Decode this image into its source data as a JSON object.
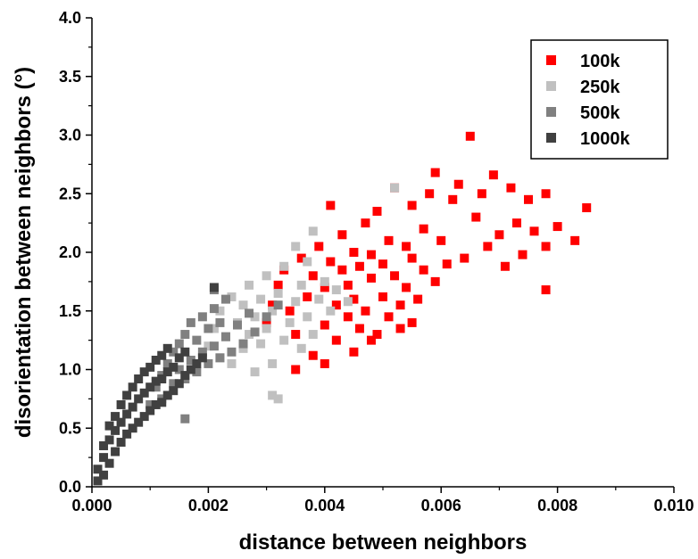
{
  "chart_data": {
    "type": "scatter",
    "title": "",
    "xlabel": "distance between neighbors",
    "ylabel": "disorientation between neighbors (°)",
    "xlim": [
      0.0,
      0.01
    ],
    "ylim": [
      0.0,
      4.0
    ],
    "x_ticks": [
      "0.000",
      "0.002",
      "0.004",
      "0.006",
      "0.008",
      "0.010"
    ],
    "y_ticks": [
      "0.0",
      "0.5",
      "1.0",
      "1.5",
      "2.0",
      "2.5",
      "3.0",
      "3.5",
      "4.0"
    ],
    "grid": false,
    "legend_position": "top-right",
    "marker": "square",
    "series": [
      {
        "name": "100k",
        "color": "#ff0000",
        "points": [
          [
            0.003,
            1.4
          ],
          [
            0.0031,
            1.55
          ],
          [
            0.0032,
            1.72
          ],
          [
            0.0033,
            1.85
          ],
          [
            0.0034,
            1.5
          ],
          [
            0.0035,
            1.3
          ],
          [
            0.0036,
            1.95
          ],
          [
            0.0037,
            1.62
          ],
          [
            0.0038,
            1.12
          ],
          [
            0.0038,
            1.8
          ],
          [
            0.0039,
            2.05
          ],
          [
            0.004,
            1.38
          ],
          [
            0.004,
            1.7
          ],
          [
            0.0041,
            1.92
          ],
          [
            0.0041,
            2.4
          ],
          [
            0.0042,
            1.25
          ],
          [
            0.0042,
            1.55
          ],
          [
            0.0043,
            2.15
          ],
          [
            0.0043,
            1.85
          ],
          [
            0.0044,
            1.45
          ],
          [
            0.0044,
            1.72
          ],
          [
            0.0045,
            1.6
          ],
          [
            0.0045,
            2.0
          ],
          [
            0.0046,
            1.35
          ],
          [
            0.0046,
            1.88
          ],
          [
            0.0047,
            2.25
          ],
          [
            0.0047,
            1.5
          ],
          [
            0.0048,
            1.78
          ],
          [
            0.0048,
            1.98
          ],
          [
            0.0049,
            1.3
          ],
          [
            0.0049,
            2.35
          ],
          [
            0.005,
            1.62
          ],
          [
            0.005,
            1.9
          ],
          [
            0.0051,
            2.1
          ],
          [
            0.0051,
            1.45
          ],
          [
            0.0052,
            1.8
          ],
          [
            0.0052,
            2.55
          ],
          [
            0.0053,
            1.55
          ],
          [
            0.0054,
            2.05
          ],
          [
            0.0054,
            1.7
          ],
          [
            0.0055,
            1.95
          ],
          [
            0.0055,
            2.4
          ],
          [
            0.0056,
            1.6
          ],
          [
            0.0057,
            2.2
          ],
          [
            0.0057,
            1.85
          ],
          [
            0.0058,
            2.5
          ],
          [
            0.0059,
            1.75
          ],
          [
            0.0059,
            2.68
          ],
          [
            0.006,
            2.1
          ],
          [
            0.0061,
            1.9
          ],
          [
            0.0062,
            2.45
          ],
          [
            0.0063,
            2.58
          ],
          [
            0.0064,
            1.95
          ],
          [
            0.0065,
            2.99
          ],
          [
            0.0066,
            2.3
          ],
          [
            0.0067,
            2.5
          ],
          [
            0.0068,
            2.05
          ],
          [
            0.0069,
            2.66
          ],
          [
            0.007,
            2.15
          ],
          [
            0.0071,
            1.88
          ],
          [
            0.0072,
            2.55
          ],
          [
            0.0073,
            2.25
          ],
          [
            0.0074,
            1.98
          ],
          [
            0.0075,
            2.45
          ],
          [
            0.0076,
            2.18
          ],
          [
            0.0078,
            2.5
          ],
          [
            0.0078,
            1.68
          ],
          [
            0.0078,
            2.05
          ],
          [
            0.008,
            2.22
          ],
          [
            0.0083,
            2.1
          ],
          [
            0.0085,
            2.38
          ],
          [
            0.0055,
            1.4
          ],
          [
            0.0045,
            1.15
          ],
          [
            0.004,
            1.05
          ],
          [
            0.0035,
            1.0
          ],
          [
            0.0048,
            1.25
          ],
          [
            0.0053,
            1.35
          ]
        ]
      },
      {
        "name": "250k",
        "color": "#c0c0c0",
        "points": [
          [
            0.002,
            1.2
          ],
          [
            0.0021,
            1.35
          ],
          [
            0.0022,
            1.1
          ],
          [
            0.0022,
            1.5
          ],
          [
            0.0023,
            1.28
          ],
          [
            0.0024,
            1.62
          ],
          [
            0.0024,
            1.05
          ],
          [
            0.0025,
            1.4
          ],
          [
            0.0026,
            1.18
          ],
          [
            0.0026,
            1.55
          ],
          [
            0.0027,
            1.3
          ],
          [
            0.0027,
            1.72
          ],
          [
            0.0028,
            0.98
          ],
          [
            0.0028,
            1.45
          ],
          [
            0.0029,
            1.6
          ],
          [
            0.0029,
            1.22
          ],
          [
            0.003,
            1.35
          ],
          [
            0.003,
            1.8
          ],
          [
            0.0031,
            1.05
          ],
          [
            0.0031,
            1.5
          ],
          [
            0.0032,
            0.75
          ],
          [
            0.0032,
            1.65
          ],
          [
            0.0033,
            1.25
          ],
          [
            0.0033,
            1.88
          ],
          [
            0.0034,
            1.4
          ],
          [
            0.0035,
            1.58
          ],
          [
            0.0035,
            2.05
          ],
          [
            0.0036,
            1.18
          ],
          [
            0.0036,
            1.72
          ],
          [
            0.0037,
            1.45
          ],
          [
            0.0037,
            1.92
          ],
          [
            0.0038,
            1.3
          ],
          [
            0.0038,
            2.18
          ],
          [
            0.0039,
            1.6
          ],
          [
            0.004,
            1.75
          ],
          [
            0.0041,
            1.5
          ],
          [
            0.0042,
            1.68
          ],
          [
            0.0044,
            1.58
          ],
          [
            0.0052,
            2.55
          ],
          [
            0.0031,
            0.78
          ]
        ]
      },
      {
        "name": "500k",
        "color": "#808080",
        "points": [
          [
            0.001,
            0.7
          ],
          [
            0.0011,
            0.85
          ],
          [
            0.0012,
            0.95
          ],
          [
            0.0012,
            0.75
          ],
          [
            0.0013,
            1.05
          ],
          [
            0.0014,
            0.88
          ],
          [
            0.0014,
            1.15
          ],
          [
            0.0015,
            1.0
          ],
          [
            0.0015,
            1.22
          ],
          [
            0.0016,
            0.92
          ],
          [
            0.0016,
            1.3
          ],
          [
            0.0017,
            1.08
          ],
          [
            0.0017,
            1.4
          ],
          [
            0.0018,
            0.98
          ],
          [
            0.0018,
            1.25
          ],
          [
            0.0019,
            1.15
          ],
          [
            0.0019,
            1.45
          ],
          [
            0.002,
            1.05
          ],
          [
            0.002,
            1.35
          ],
          [
            0.0021,
            1.2
          ],
          [
            0.0021,
            1.52
          ],
          [
            0.0022,
            1.1
          ],
          [
            0.0022,
            1.4
          ],
          [
            0.0023,
            1.28
          ],
          [
            0.0023,
            1.6
          ],
          [
            0.0024,
            1.15
          ],
          [
            0.0025,
            1.38
          ],
          [
            0.0026,
            1.22
          ],
          [
            0.0027,
            1.48
          ],
          [
            0.0028,
            1.32
          ],
          [
            0.003,
            1.45
          ],
          [
            0.0032,
            1.55
          ],
          [
            0.0016,
            0.58
          ],
          [
            0.0021,
            1.68
          ]
        ]
      },
      {
        "name": "1000k",
        "color": "#404040",
        "points": [
          [
            0.0001,
            0.05
          ],
          [
            0.0001,
            0.15
          ],
          [
            0.0002,
            0.1
          ],
          [
            0.0002,
            0.25
          ],
          [
            0.0002,
            0.35
          ],
          [
            0.0003,
            0.2
          ],
          [
            0.0003,
            0.4
          ],
          [
            0.0003,
            0.52
          ],
          [
            0.0004,
            0.3
          ],
          [
            0.0004,
            0.48
          ],
          [
            0.0004,
            0.6
          ],
          [
            0.0005,
            0.38
          ],
          [
            0.0005,
            0.55
          ],
          [
            0.0005,
            0.7
          ],
          [
            0.0006,
            0.45
          ],
          [
            0.0006,
            0.62
          ],
          [
            0.0006,
            0.78
          ],
          [
            0.0007,
            0.5
          ],
          [
            0.0007,
            0.68
          ],
          [
            0.0007,
            0.85
          ],
          [
            0.0008,
            0.55
          ],
          [
            0.0008,
            0.75
          ],
          [
            0.0008,
            0.92
          ],
          [
            0.0009,
            0.6
          ],
          [
            0.0009,
            0.8
          ],
          [
            0.0009,
            0.98
          ],
          [
            0.001,
            0.65
          ],
          [
            0.001,
            0.85
          ],
          [
            0.001,
            1.02
          ],
          [
            0.0011,
            0.7
          ],
          [
            0.0011,
            0.9
          ],
          [
            0.0011,
            1.08
          ],
          [
            0.0012,
            0.72
          ],
          [
            0.0012,
            0.92
          ],
          [
            0.0012,
            1.12
          ],
          [
            0.0013,
            0.78
          ],
          [
            0.0013,
            0.98
          ],
          [
            0.0013,
            1.18
          ],
          [
            0.0014,
            0.82
          ],
          [
            0.0014,
            1.02
          ],
          [
            0.0015,
            0.88
          ],
          [
            0.0015,
            1.1
          ],
          [
            0.0016,
            0.95
          ],
          [
            0.0016,
            1.15
          ],
          [
            0.0017,
            1.0
          ],
          [
            0.0018,
            1.05
          ],
          [
            0.0019,
            1.1
          ],
          [
            0.0021,
            1.7
          ]
        ]
      }
    ]
  }
}
